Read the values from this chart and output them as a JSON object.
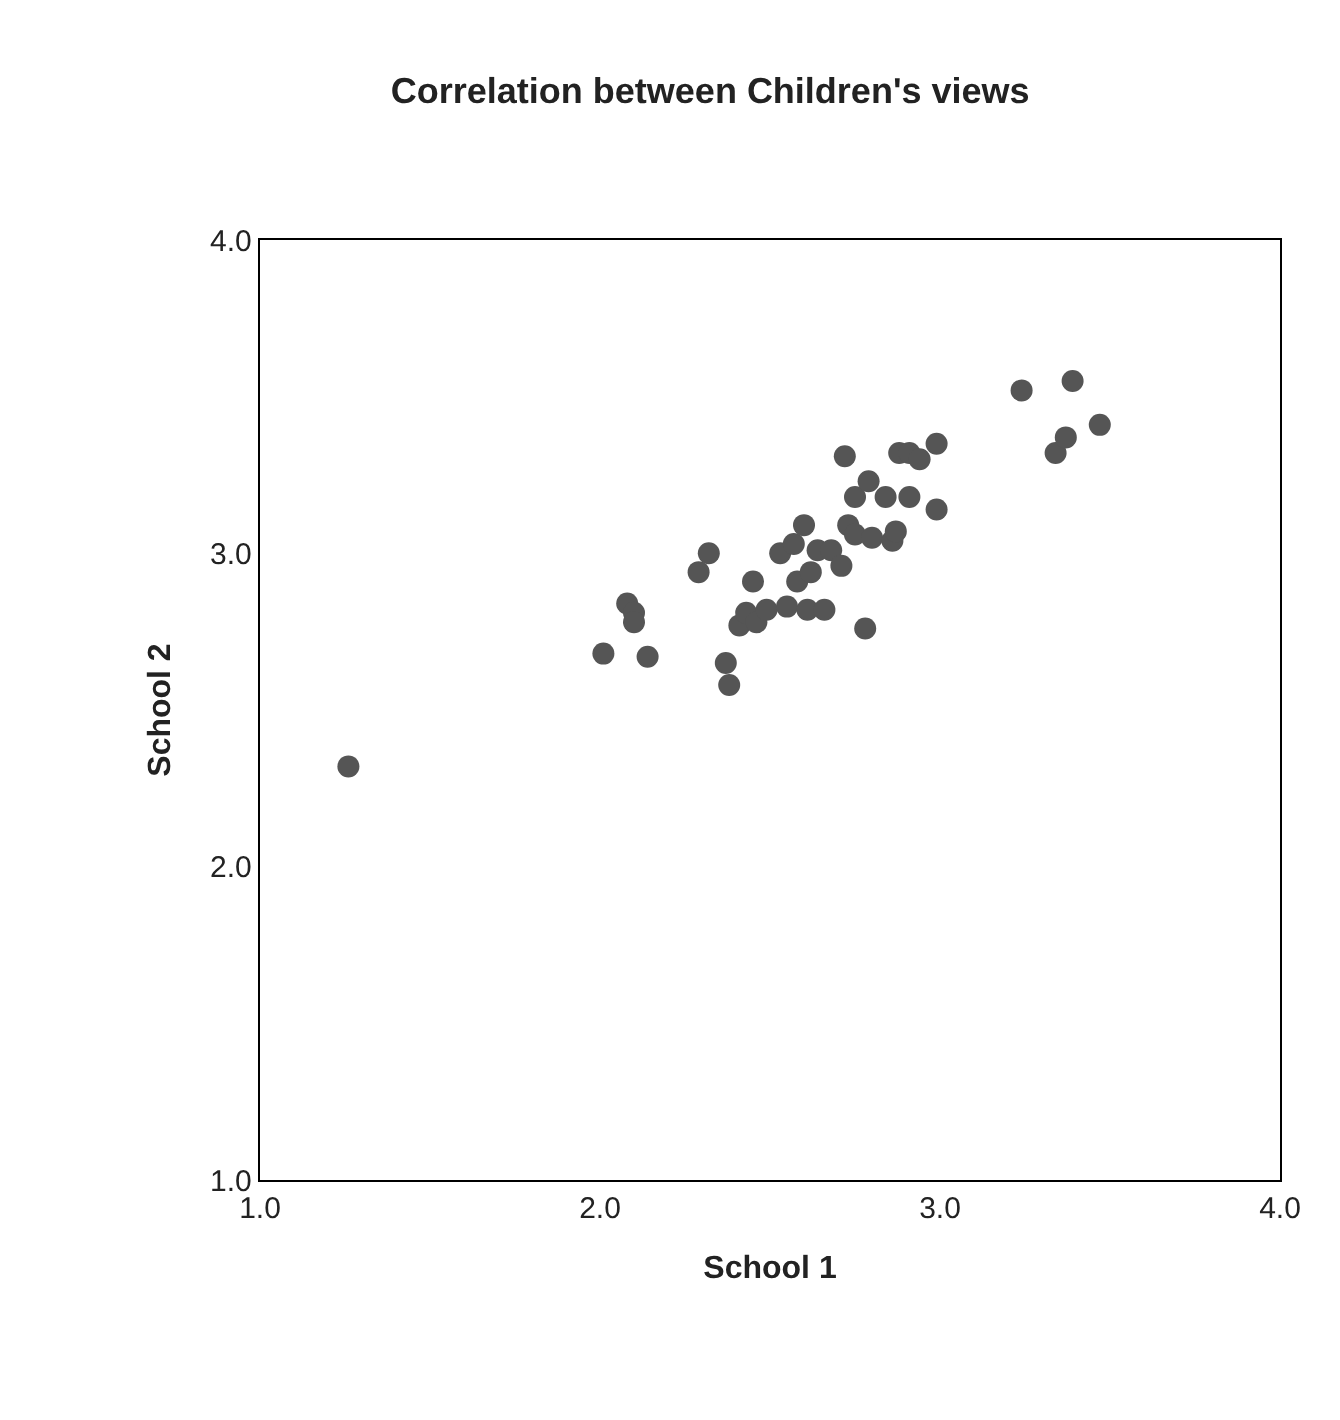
{
  "chart_data": {
    "type": "scatter",
    "title": "Correlation between Children's views",
    "xlabel": "School 1",
    "ylabel": "School 2",
    "x": [
      1.26,
      2.01,
      2.14,
      2.08,
      2.1,
      2.1,
      2.29,
      2.32,
      2.37,
      2.38,
      2.41,
      2.45,
      2.43,
      2.46,
      2.49,
      2.55,
      2.61,
      2.66,
      2.53,
      2.57,
      2.6,
      2.58,
      2.62,
      2.64,
      2.68,
      2.71,
      2.72,
      2.73,
      2.75,
      2.75,
      2.79,
      2.78,
      2.8,
      2.84,
      2.86,
      2.87,
      2.91,
      2.88,
      2.91,
      2.94,
      2.99,
      2.99,
      3.24,
      3.39,
      3.34,
      3.37,
      3.47
    ],
    "series": [
      {
        "color": "#555555",
        "values": [
          2.32,
          2.68,
          2.67,
          2.84,
          2.81,
          2.78,
          2.94,
          3.0,
          2.65,
          2.58,
          2.77,
          2.91,
          2.81,
          2.78,
          2.82,
          2.83,
          2.82,
          2.82,
          3.0,
          3.03,
          3.09,
          2.91,
          2.94,
          3.01,
          3.01,
          2.96,
          3.31,
          3.09,
          3.06,
          3.18,
          3.23,
          2.76,
          3.05,
          3.18,
          3.04,
          3.07,
          3.18,
          3.32,
          3.32,
          3.3,
          3.35,
          3.14,
          3.52,
          3.55,
          3.32,
          3.37,
          3.41
        ]
      }
    ],
    "xlim": [
      1.0,
      4.0
    ],
    "ylim": [
      1.0,
      4.0
    ],
    "xticks": [
      {
        "value": 1,
        "label": "1.0"
      },
      {
        "value": 2,
        "label": "2.0"
      },
      {
        "value": 3,
        "label": "3.0"
      },
      {
        "value": 4,
        "label": "4.0"
      }
    ],
    "yticks": [
      {
        "value": 1,
        "label": "1.0"
      },
      {
        "value": 2,
        "label": "2.0"
      },
      {
        "value": 3,
        "label": "3.0"
      },
      {
        "value": 4,
        "label": "4.0"
      }
    ],
    "marker": "circle"
  }
}
